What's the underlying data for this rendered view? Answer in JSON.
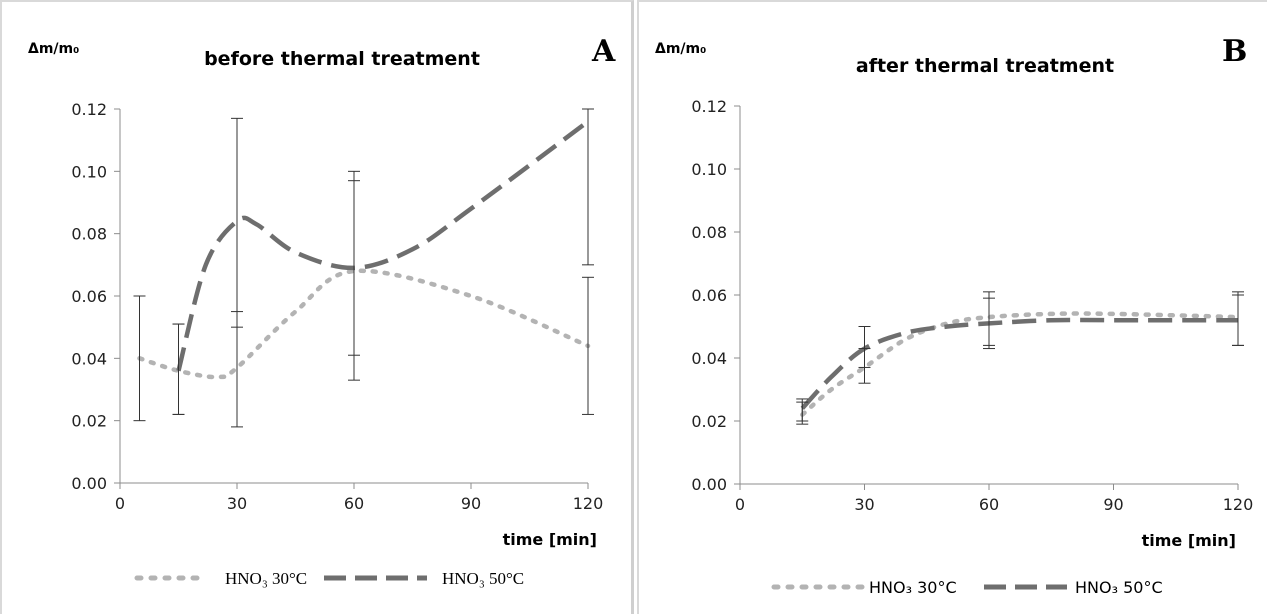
{
  "chart_data": [
    {
      "type": "line",
      "panel_letter": "A",
      "title": "before thermal treatment",
      "ylabel": "Δm/m₀",
      "xlabel": "time [min]",
      "xlim": [
        0,
        120
      ],
      "ylim": [
        0,
        0.12
      ],
      "xticks": [
        0,
        30,
        60,
        90,
        120
      ],
      "yticks": [
        0.0,
        0.02,
        0.04,
        0.06,
        0.08,
        0.1,
        0.12
      ],
      "ytick_labels": [
        "0.00",
        "0.02",
        "0.04",
        "0.06",
        "0.08",
        "0.10",
        "0.12"
      ],
      "legend_position": "bottom",
      "legend_style": "serif",
      "series": [
        {
          "name": "HNO₃ 30°C",
          "style": "dotted",
          "color": "#b3b3b3",
          "points": [
            [
              5,
              0.04
            ],
            [
              15,
              0.036
            ],
            [
              25,
              0.034
            ],
            [
              30,
              0.037
            ],
            [
              45,
              0.055
            ],
            [
              60,
              0.068
            ],
            [
              90,
              0.06
            ],
            [
              120,
              0.044
            ]
          ],
          "error_bars": [
            [
              5,
              0.02,
              0.06
            ],
            [
              15,
              0.022,
              0.051
            ],
            [
              30,
              0.018,
              0.055
            ],
            [
              60,
              0.041,
              0.1
            ],
            [
              120,
              0.022,
              0.066
            ]
          ]
        },
        {
          "name": "HNO₃ 50°C",
          "style": "dashed",
          "color": "#6e6e6e",
          "points": [
            [
              15,
              0.036
            ],
            [
              22,
              0.07
            ],
            [
              30,
              0.084
            ],
            [
              35,
              0.083
            ],
            [
              45,
              0.074
            ],
            [
              60,
              0.069
            ],
            [
              75,
              0.075
            ],
            [
              90,
              0.088
            ],
            [
              120,
              0.116
            ]
          ],
          "error_bars": [
            [
              15,
              0.022,
              0.051
            ],
            [
              30,
              0.05,
              0.117
            ],
            [
              60,
              0.033,
              0.097
            ],
            [
              120,
              0.07,
              0.12
            ]
          ]
        }
      ]
    },
    {
      "type": "line",
      "panel_letter": "B",
      "title": "after thermal treatment",
      "ylabel": "Δm/m₀",
      "xlabel": "time [min]",
      "xlim": [
        0,
        120
      ],
      "ylim": [
        0,
        0.12
      ],
      "xticks": [
        0,
        30,
        60,
        90,
        120
      ],
      "yticks": [
        0.0,
        0.02,
        0.04,
        0.06,
        0.08,
        0.1,
        0.12
      ],
      "ytick_labels": [
        "0.00",
        "0.02",
        "0.04",
        "0.06",
        "0.08",
        "0.10",
        "0.12"
      ],
      "legend_position": "bottom",
      "legend_style": "sans",
      "series": [
        {
          "name": "HNO₃ 30°C",
          "style": "dotted",
          "color": "#b3b3b3",
          "points": [
            [
              15,
              0.022
            ],
            [
              22,
              0.03
            ],
            [
              30,
              0.037
            ],
            [
              40,
              0.046
            ],
            [
              50,
              0.051
            ],
            [
              60,
              0.053
            ],
            [
              75,
              0.054
            ],
            [
              90,
              0.054
            ],
            [
              120,
              0.053
            ]
          ],
          "error_bars": [
            [
              15,
              0.019,
              0.026
            ],
            [
              30,
              0.032,
              0.043
            ],
            [
              60,
              0.044,
              0.061
            ],
            [
              120,
              0.044,
              0.061
            ]
          ]
        },
        {
          "name": "HNO₃ 50°C",
          "style": "dashed",
          "color": "#6e6e6e",
          "points": [
            [
              15,
              0.024
            ],
            [
              22,
              0.034
            ],
            [
              30,
              0.043
            ],
            [
              40,
              0.048
            ],
            [
              50,
              0.05
            ],
            [
              60,
              0.051
            ],
            [
              75,
              0.052
            ],
            [
              90,
              0.052
            ],
            [
              120,
              0.052
            ]
          ],
          "error_bars": [
            [
              15,
              0.02,
              0.027
            ],
            [
              30,
              0.037,
              0.05
            ],
            [
              60,
              0.043,
              0.059
            ],
            [
              120,
              0.044,
              0.06
            ]
          ]
        }
      ]
    }
  ]
}
